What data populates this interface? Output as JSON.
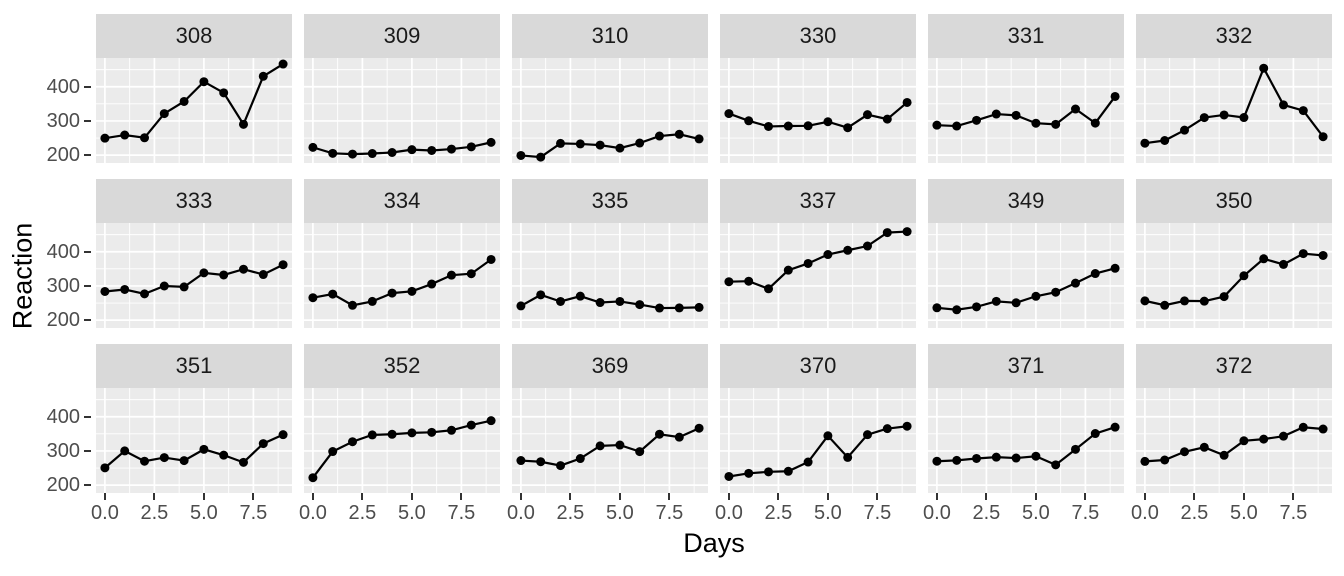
{
  "chart_data": {
    "type": "line",
    "title": "",
    "xlabel": "Days",
    "ylabel": "Reaction",
    "x": [
      0,
      1,
      2,
      3,
      4,
      5,
      6,
      7,
      8,
      9
    ],
    "facets": [
      {
        "label": "308",
        "values": [
          249.6,
          258.7,
          250.8,
          321.4,
          356.9,
          414.7,
          382.2,
          290.1,
          430.6,
          466.4
        ]
      },
      {
        "label": "309",
        "values": [
          222.7,
          205.3,
          203.0,
          204.7,
          207.7,
          216.0,
          213.6,
          217.7,
          224.3,
          237.3
        ]
      },
      {
        "label": "310",
        "values": [
          199.1,
          194.3,
          234.3,
          232.8,
          229.3,
          220.5,
          235.4,
          255.8,
          261.0,
          247.5
        ]
      },
      {
        "label": "330",
        "values": [
          321.5,
          300.4,
          283.9,
          285.1,
          285.8,
          297.6,
          280.2,
          318.3,
          305.3,
          354.0
        ]
      },
      {
        "label": "331",
        "values": [
          287.6,
          285.0,
          301.8,
          320.1,
          316.3,
          293.3,
          290.1,
          334.8,
          293.7,
          371.6
        ]
      },
      {
        "label": "332",
        "values": [
          234.9,
          242.8,
          273.0,
          309.8,
          317.5,
          310.0,
          454.2,
          346.8,
          330.3,
          253.9
        ]
      },
      {
        "label": "333",
        "values": [
          283.8,
          289.6,
          276.8,
          299.8,
          297.2,
          338.2,
          332.0,
          348.8,
          333.4,
          362.0
        ]
      },
      {
        "label": "334",
        "values": [
          265.5,
          276.2,
          243.4,
          254.7,
          279.0,
          284.2,
          305.5,
          331.5,
          335.7,
          377.3
        ]
      },
      {
        "label": "335",
        "values": [
          241.6,
          273.9,
          254.5,
          270.1,
          251.5,
          254.6,
          245.5,
          235.3,
          235.8,
          237.2
        ]
      },
      {
        "label": "337",
        "values": [
          312.4,
          313.8,
          291.6,
          346.1,
          365.7,
          391.8,
          404.3,
          416.7,
          455.9,
          458.9
        ]
      },
      {
        "label": "349",
        "values": [
          236.1,
          230.3,
          238.9,
          254.9,
          250.7,
          269.8,
          281.6,
          308.1,
          336.3,
          351.6
        ]
      },
      {
        "label": "350",
        "values": [
          256.3,
          243.5,
          256.2,
          255.5,
          268.9,
          329.7,
          379.4,
          362.9,
          394.5,
          389.1
        ]
      },
      {
        "label": "351",
        "values": [
          250.5,
          300.1,
          269.9,
          280.6,
          271.8,
          304.6,
          287.7,
          266.6,
          321.5,
          347.6
        ]
      },
      {
        "label": "352",
        "values": [
          221.7,
          298.2,
          326.9,
          346.9,
          348.7,
          352.8,
          354.4,
          360.4,
          375.6,
          388.5
        ]
      },
      {
        "label": "369",
        "values": [
          271.9,
          268.4,
          257.2,
          277.7,
          314.8,
          317.2,
          298.1,
          348.8,
          340.3,
          366.5
        ]
      },
      {
        "label": "370",
        "values": [
          225.3,
          234.5,
          238.9,
          240.5,
          267.5,
          344.2,
          281.1,
          347.6,
          365.2,
          372.2
        ]
      },
      {
        "label": "371",
        "values": [
          269.9,
          272.4,
          277.9,
          281.8,
          279.2,
          284.5,
          259.3,
          304.6,
          350.8,
          369.5
        ]
      },
      {
        "label": "372",
        "values": [
          269.4,
          273.5,
          297.6,
          310.6,
          287.2,
          329.6,
          334.5,
          343.2,
          369.1,
          364.1
        ]
      }
    ],
    "facet_rows": 3,
    "facet_cols": 6,
    "x_ticks": {
      "values": [
        0,
        2.5,
        5,
        7.5
      ],
      "labels": [
        "0.0",
        "2.5",
        "5.0",
        "7.5"
      ]
    },
    "y_ticks": {
      "values": [
        400,
        300,
        200
      ],
      "labels": [
        "400",
        "300",
        "200"
      ]
    },
    "x_minor": [
      1.25,
      3.75,
      6.25,
      8.75
    ],
    "y_minor": [
      250,
      350,
      450
    ],
    "xlim": [
      -0.45,
      9.45
    ],
    "ylim": [
      177,
      484
    ],
    "grid": true,
    "legend": "none",
    "colors": {
      "strip_bg": "#d9d9d9",
      "strip_text": "#1a1a1a",
      "panel_bg": "#ebebeb",
      "grid": "#ffffff",
      "series": "#000000",
      "tick_label": "#4d4d4d",
      "tick_mark": "#333333",
      "axis_title": "#000000",
      "background": "#ffffff"
    }
  }
}
